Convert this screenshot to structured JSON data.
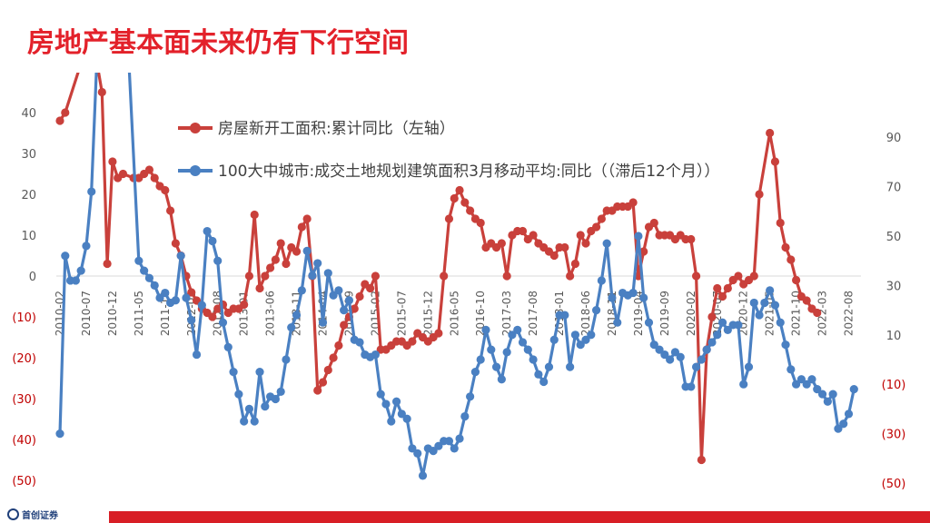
{
  "header": {
    "title": "房地产基本面未来仍有下行空间"
  },
  "footer": {
    "logo_text": "首创证券"
  },
  "chart_data": {
    "type": "line",
    "left_axis": {
      "range": [
        -50,
        40
      ],
      "ticks": [
        40,
        30,
        20,
        10,
        0,
        -10,
        -20,
        -30,
        -40,
        -50
      ],
      "tick_labels": [
        "40",
        "30",
        "20",
        "10",
        "0",
        "(10)",
        "(20)",
        "(30)",
        "(40)",
        "(50)"
      ]
    },
    "right_axis": {
      "range": [
        -50,
        110
      ],
      "ticks": [
        90,
        70,
        50,
        30,
        10,
        -10,
        -30,
        -50
      ],
      "tick_labels": [
        "90",
        "70",
        "50",
        "30",
        "10",
        "(10)",
        "(30)",
        "(50)"
      ]
    },
    "x_tick_labels": [
      "2010-02",
      "2010-07",
      "2010-12",
      "2011-05",
      "2011-10",
      "2012-03",
      "2012-08",
      "2013-01",
      "2013-06",
      "2013-11",
      "2014-04",
      "2014-09",
      "2015-02",
      "2015-07",
      "2015-12",
      "2016-05",
      "2016-10",
      "2017-03",
      "2017-08",
      "2018-01",
      "2018-06",
      "2018-11",
      "2019-04",
      "2019-09",
      "2020-02",
      "2020-07",
      "2020-12",
      "2021-05",
      "2021-10",
      "2022-03",
      "2022-08"
    ],
    "series": [
      {
        "name": "房屋新开工面积:累计同比（左轴）",
        "color": "#c9403b",
        "axis": "left",
        "points": [
          [
            0,
            38
          ],
          [
            0.2,
            40
          ],
          [
            1.2,
            60
          ],
          [
            1.6,
            45
          ],
          [
            1.8,
            3
          ],
          [
            2.0,
            28
          ],
          [
            2.2,
            24
          ],
          [
            2.4,
            25
          ],
          [
            2.8,
            24
          ],
          [
            3.0,
            24
          ],
          [
            3.2,
            25
          ],
          [
            3.4,
            26
          ],
          [
            3.6,
            24
          ],
          [
            3.8,
            22
          ],
          [
            4.0,
            21
          ],
          [
            4.2,
            16
          ],
          [
            4.4,
            8
          ],
          [
            4.6,
            5
          ],
          [
            4.8,
            0
          ],
          [
            5.0,
            -4
          ],
          [
            5.2,
            -6
          ],
          [
            5.4,
            -8
          ],
          [
            5.6,
            -9
          ],
          [
            5.8,
            -10
          ],
          [
            6.0,
            -8
          ],
          [
            6.2,
            -7
          ],
          [
            6.4,
            -9
          ],
          [
            6.6,
            -8
          ],
          [
            6.8,
            -8
          ],
          [
            7.0,
            -7
          ],
          [
            7.2,
            0
          ],
          [
            7.4,
            15
          ],
          [
            7.6,
            -3
          ],
          [
            7.8,
            0
          ],
          [
            8.0,
            2
          ],
          [
            8.2,
            4
          ],
          [
            8.4,
            8
          ],
          [
            8.6,
            3
          ],
          [
            8.8,
            7
          ],
          [
            9.0,
            6
          ],
          [
            9.2,
            12
          ],
          [
            9.4,
            14
          ],
          [
            9.6,
            0
          ],
          [
            9.8,
            -28
          ],
          [
            10.0,
            -26
          ],
          [
            10.2,
            -23
          ],
          [
            10.4,
            -20
          ],
          [
            10.6,
            -17
          ],
          [
            10.8,
            -12
          ],
          [
            11.0,
            -10
          ],
          [
            11.2,
            -8
          ],
          [
            11.4,
            -5
          ],
          [
            11.6,
            -2
          ],
          [
            11.8,
            -3
          ],
          [
            12.0,
            0
          ],
          [
            12.2,
            -18
          ],
          [
            12.4,
            -18
          ],
          [
            12.6,
            -17
          ],
          [
            12.8,
            -16
          ],
          [
            13.0,
            -16
          ],
          [
            13.2,
            -17
          ],
          [
            13.4,
            -16
          ],
          [
            13.6,
            -14
          ],
          [
            13.8,
            -15
          ],
          [
            14.0,
            -16
          ],
          [
            14.2,
            -15
          ],
          [
            14.4,
            -14
          ],
          [
            14.6,
            0
          ],
          [
            14.8,
            14
          ],
          [
            15.0,
            19
          ],
          [
            15.2,
            21
          ],
          [
            15.4,
            18
          ],
          [
            15.6,
            16
          ],
          [
            15.8,
            14
          ],
          [
            16.0,
            13
          ],
          [
            16.2,
            7
          ],
          [
            16.4,
            8
          ],
          [
            16.6,
            7
          ],
          [
            16.8,
            8
          ],
          [
            17.0,
            0
          ],
          [
            17.2,
            10
          ],
          [
            17.4,
            11
          ],
          [
            17.6,
            11
          ],
          [
            17.8,
            9
          ],
          [
            18.0,
            10
          ],
          [
            18.2,
            8
          ],
          [
            18.4,
            7
          ],
          [
            18.6,
            6
          ],
          [
            18.8,
            5
          ],
          [
            19.0,
            7
          ],
          [
            19.2,
            7
          ],
          [
            19.4,
            0
          ],
          [
            19.6,
            3
          ],
          [
            19.8,
            10
          ],
          [
            20.0,
            8
          ],
          [
            20.2,
            11
          ],
          [
            20.4,
            12
          ],
          [
            20.6,
            14
          ],
          [
            20.8,
            16
          ],
          [
            21.0,
            16
          ],
          [
            21.2,
            17
          ],
          [
            21.4,
            17
          ],
          [
            21.6,
            17
          ],
          [
            21.8,
            18
          ],
          [
            22.0,
            0
          ],
          [
            22.2,
            6
          ],
          [
            22.4,
            12
          ],
          [
            22.6,
            13
          ],
          [
            22.8,
            10
          ],
          [
            23.0,
            10
          ],
          [
            23.2,
            10
          ],
          [
            23.4,
            9
          ],
          [
            23.6,
            10
          ],
          [
            23.8,
            9
          ],
          [
            24.0,
            9
          ],
          [
            24.2,
            0
          ],
          [
            24.4,
            -45
          ],
          [
            24.6,
            -18
          ],
          [
            24.8,
            -10
          ],
          [
            25.0,
            -3
          ],
          [
            25.2,
            -5
          ],
          [
            25.4,
            -3
          ],
          [
            25.6,
            -1
          ],
          [
            25.8,
            0
          ],
          [
            26.0,
            -2
          ],
          [
            26.2,
            -1
          ],
          [
            26.4,
            0
          ],
          [
            26.6,
            20
          ],
          [
            27.0,
            35
          ],
          [
            27.2,
            28
          ],
          [
            27.4,
            13
          ],
          [
            27.6,
            7
          ],
          [
            27.8,
            4
          ],
          [
            28.0,
            -1
          ],
          [
            28.2,
            -5
          ],
          [
            28.4,
            -6
          ],
          [
            28.6,
            -8
          ],
          [
            28.8,
            -9
          ]
        ]
      },
      {
        "name": "100大中城市:成交土地规划建筑面积3月移动平均:同比（（滞后12个月））",
        "color": "#4a80c2",
        "axis": "right",
        "points": [
          [
            0,
            -30
          ],
          [
            0.2,
            42
          ],
          [
            0.4,
            32
          ],
          [
            0.6,
            32
          ],
          [
            0.8,
            36
          ],
          [
            1.0,
            46
          ],
          [
            1.2,
            68
          ],
          [
            1.4,
            120
          ],
          [
            2.6,
            125
          ],
          [
            3.0,
            40
          ],
          [
            3.2,
            36
          ],
          [
            3.4,
            33
          ],
          [
            3.6,
            30
          ],
          [
            3.8,
            25
          ],
          [
            4.0,
            27
          ],
          [
            4.2,
            23
          ],
          [
            4.4,
            24
          ],
          [
            4.6,
            42
          ],
          [
            4.8,
            25
          ],
          [
            5.0,
            16
          ],
          [
            5.2,
            2
          ],
          [
            5.4,
            22
          ],
          [
            5.6,
            52
          ],
          [
            5.8,
            48
          ],
          [
            6.0,
            40
          ],
          [
            6.2,
            15
          ],
          [
            6.4,
            5
          ],
          [
            6.6,
            -5
          ],
          [
            6.8,
            -14
          ],
          [
            7.0,
            -25
          ],
          [
            7.2,
            -20
          ],
          [
            7.4,
            -25
          ],
          [
            7.6,
            -5
          ],
          [
            7.8,
            -19
          ],
          [
            8.0,
            -15
          ],
          [
            8.2,
            -16
          ],
          [
            8.4,
            -13
          ],
          [
            8.6,
            0
          ],
          [
            8.8,
            13
          ],
          [
            9.0,
            18
          ],
          [
            9.2,
            28
          ],
          [
            9.4,
            44
          ],
          [
            9.6,
            34
          ],
          [
            9.8,
            39
          ],
          [
            10.0,
            15
          ],
          [
            10.2,
            35
          ],
          [
            10.4,
            26
          ],
          [
            10.6,
            28
          ],
          [
            10.8,
            20
          ],
          [
            11.0,
            24
          ],
          [
            11.2,
            8
          ],
          [
            11.4,
            7
          ],
          [
            11.6,
            2
          ],
          [
            11.8,
            1
          ],
          [
            12.0,
            2
          ],
          [
            12.2,
            -14
          ],
          [
            12.4,
            -18
          ],
          [
            12.6,
            -25
          ],
          [
            12.8,
            -17
          ],
          [
            13.0,
            -22
          ],
          [
            13.2,
            -24
          ],
          [
            13.4,
            -36
          ],
          [
            13.6,
            -38
          ],
          [
            13.8,
            -47
          ],
          [
            14.0,
            -36
          ],
          [
            14.2,
            -37
          ],
          [
            14.4,
            -35
          ],
          [
            14.6,
            -33
          ],
          [
            14.8,
            -33
          ],
          [
            15.0,
            -36
          ],
          [
            15.2,
            -32
          ],
          [
            15.4,
            -23
          ],
          [
            15.6,
            -15
          ],
          [
            15.8,
            -5
          ],
          [
            16.0,
            0
          ],
          [
            16.2,
            12
          ],
          [
            16.4,
            4
          ],
          [
            16.6,
            -3
          ],
          [
            16.8,
            -8
          ],
          [
            17.0,
            3
          ],
          [
            17.2,
            10
          ],
          [
            17.4,
            12
          ],
          [
            17.6,
            7
          ],
          [
            17.8,
            4
          ],
          [
            18.0,
            0
          ],
          [
            18.2,
            -6
          ],
          [
            18.4,
            -9
          ],
          [
            18.6,
            -3
          ],
          [
            18.8,
            8
          ],
          [
            19.0,
            18
          ],
          [
            19.2,
            18
          ],
          [
            19.4,
            -3
          ],
          [
            19.6,
            10
          ],
          [
            19.8,
            6
          ],
          [
            20.0,
            8
          ],
          [
            20.2,
            10
          ],
          [
            20.4,
            20
          ],
          [
            20.6,
            32
          ],
          [
            20.8,
            47
          ],
          [
            21.0,
            25
          ],
          [
            21.2,
            15
          ],
          [
            21.4,
            27
          ],
          [
            21.6,
            26
          ],
          [
            21.8,
            27
          ],
          [
            22.0,
            50
          ],
          [
            22.2,
            25
          ],
          [
            22.4,
            15
          ],
          [
            22.6,
            6
          ],
          [
            22.8,
            4
          ],
          [
            23.0,
            2
          ],
          [
            23.2,
            0
          ],
          [
            23.4,
            3
          ],
          [
            23.6,
            1
          ],
          [
            23.8,
            -11
          ],
          [
            24.0,
            -11
          ],
          [
            24.2,
            -3
          ],
          [
            24.4,
            0
          ],
          [
            24.6,
            4
          ],
          [
            24.8,
            7
          ],
          [
            25.0,
            10
          ],
          [
            25.2,
            15
          ],
          [
            25.4,
            12
          ],
          [
            25.6,
            14
          ],
          [
            25.8,
            14
          ],
          [
            26.0,
            -10
          ],
          [
            26.2,
            -3
          ],
          [
            26.4,
            23
          ],
          [
            26.6,
            18
          ],
          [
            26.8,
            23
          ],
          [
            27.0,
            28
          ],
          [
            27.2,
            22
          ],
          [
            27.4,
            15
          ],
          [
            27.6,
            6
          ],
          [
            27.8,
            -4
          ],
          [
            28.0,
            -10
          ],
          [
            28.2,
            -8
          ],
          [
            28.4,
            -10
          ],
          [
            28.6,
            -8
          ],
          [
            28.8,
            -12
          ],
          [
            29.0,
            -14
          ],
          [
            29.2,
            -17
          ],
          [
            29.4,
            -14
          ],
          [
            29.6,
            -28
          ],
          [
            29.8,
            -26
          ],
          [
            30.0,
            -22
          ],
          [
            30.2,
            -12
          ]
        ]
      }
    ],
    "legend_position": "top"
  }
}
